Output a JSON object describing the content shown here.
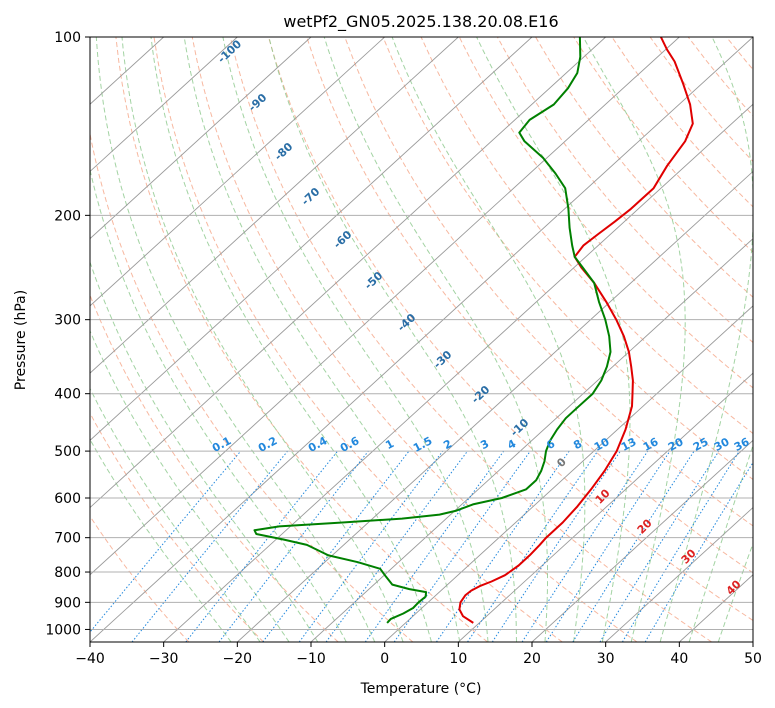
{
  "chart_data": {
    "type": "line",
    "title": "wetPf2_GN05.2025.138.20.08.E16",
    "xlabel": "Temperature (°C)",
    "ylabel": "Pressure (hPa)",
    "xlim": [
      -40,
      50
    ],
    "ylim": [
      1050,
      100
    ],
    "y_scale": "log",
    "x_ticks": [
      -40,
      -30,
      -20,
      -10,
      0,
      10,
      20,
      30,
      40,
      50
    ],
    "y_ticks": [
      100,
      200,
      300,
      400,
      500,
      600,
      700,
      800,
      900,
      1000
    ],
    "grid": true,
    "series": [
      {
        "kind": "temperature",
        "color": "#e00000",
        "points": [
          {
            "p": 975,
            "t": 9.2
          },
          {
            "p": 950,
            "t": 6.8
          },
          {
            "p": 925,
            "t": 5.3
          },
          {
            "p": 900,
            "t": 4.4
          },
          {
            "p": 875,
            "t": 4.0
          },
          {
            "p": 860,
            "t": 4.1
          },
          {
            "p": 845,
            "t": 4.6
          },
          {
            "p": 830,
            "t": 5.5
          },
          {
            "p": 810,
            "t": 6.4
          },
          {
            "p": 780,
            "t": 6.8
          },
          {
            "p": 750,
            "t": 6.8
          },
          {
            "p": 720,
            "t": 6.6
          },
          {
            "p": 700,
            "t": 6.4
          },
          {
            "p": 660,
            "t": 6.4
          },
          {
            "p": 620,
            "t": 6.0
          },
          {
            "p": 580,
            "t": 5.3
          },
          {
            "p": 540,
            "t": 4.4
          },
          {
            "p": 500,
            "t": 3.1
          },
          {
            "p": 460,
            "t": 1.1
          },
          {
            "p": 420,
            "t": -1.5
          },
          {
            "p": 400,
            "t": -3.3
          },
          {
            "p": 380,
            "t": -5.2
          },
          {
            "p": 360,
            "t": -7.5
          },
          {
            "p": 340,
            "t": -10.0
          },
          {
            "p": 320,
            "t": -13.0
          },
          {
            "p": 300,
            "t": -16.5
          },
          {
            "p": 280,
            "t": -20.5
          },
          {
            "p": 260,
            "t": -25.0
          },
          {
            "p": 245,
            "t": -29.0
          },
          {
            "p": 235,
            "t": -31.5
          },
          {
            "p": 225,
            "t": -32.0
          },
          {
            "p": 215,
            "t": -31.7
          },
          {
            "p": 205,
            "t": -31.3
          },
          {
            "p": 195,
            "t": -31.0
          },
          {
            "p": 180,
            "t": -31.0
          },
          {
            "p": 165,
            "t": -32.5
          },
          {
            "p": 150,
            "t": -33.7
          },
          {
            "p": 140,
            "t": -35.3
          },
          {
            "p": 130,
            "t": -38.5
          },
          {
            "p": 120,
            "t": -42.5
          },
          {
            "p": 110,
            "t": -47.0
          },
          {
            "p": 105,
            "t": -49.8
          },
          {
            "p": 100,
            "t": -52.5
          }
        ]
      },
      {
        "kind": "dewpoint",
        "color": "#008000",
        "points": [
          {
            "p": 975,
            "t": -2.5
          },
          {
            "p": 960,
            "t": -2.6
          },
          {
            "p": 940,
            "t": -1.7
          },
          {
            "p": 920,
            "t": -1.2
          },
          {
            "p": 900,
            "t": -1.3
          },
          {
            "p": 880,
            "t": -1.2
          },
          {
            "p": 865,
            "t": -1.8
          },
          {
            "p": 855,
            "t": -4.5
          },
          {
            "p": 840,
            "t": -7.5
          },
          {
            "p": 815,
            "t": -9.5
          },
          {
            "p": 790,
            "t": -11.5
          },
          {
            "p": 770,
            "t": -15.5
          },
          {
            "p": 750,
            "t": -20.5
          },
          {
            "p": 720,
            "t": -25.0
          },
          {
            "p": 705,
            "t": -29.0
          },
          {
            "p": 690,
            "t": -33.5
          },
          {
            "p": 680,
            "t": -34.3
          },
          {
            "p": 670,
            "t": -31.5
          },
          {
            "p": 660,
            "t": -23.5
          },
          {
            "p": 650,
            "t": -16.0
          },
          {
            "p": 640,
            "t": -11.5
          },
          {
            "p": 630,
            "t": -9.8
          },
          {
            "p": 615,
            "t": -8.5
          },
          {
            "p": 600,
            "t": -5.5
          },
          {
            "p": 580,
            "t": -3.5
          },
          {
            "p": 560,
            "t": -3.5
          },
          {
            "p": 540,
            "t": -4.2
          },
          {
            "p": 520,
            "t": -5.2
          },
          {
            "p": 500,
            "t": -6.5
          },
          {
            "p": 480,
            "t": -7.5
          },
          {
            "p": 460,
            "t": -8.2
          },
          {
            "p": 440,
            "t": -8.7
          },
          {
            "p": 420,
            "t": -8.7
          },
          {
            "p": 400,
            "t": -8.7
          },
          {
            "p": 380,
            "t": -9.5
          },
          {
            "p": 360,
            "t": -10.8
          },
          {
            "p": 340,
            "t": -12.5
          },
          {
            "p": 320,
            "t": -15.0
          },
          {
            "p": 300,
            "t": -18.0
          },
          {
            "p": 280,
            "t": -21.5
          },
          {
            "p": 260,
            "t": -25.0
          },
          {
            "p": 245,
            "t": -28.8
          },
          {
            "p": 235,
            "t": -31.5
          },
          {
            "p": 225,
            "t": -33.5
          },
          {
            "p": 210,
            "t": -36.5
          },
          {
            "p": 195,
            "t": -39.5
          },
          {
            "p": 180,
            "t": -43.0
          },
          {
            "p": 170,
            "t": -46.5
          },
          {
            "p": 160,
            "t": -50.5
          },
          {
            "p": 150,
            "t": -55.5
          },
          {
            "p": 145,
            "t": -57.5
          },
          {
            "p": 138,
            "t": -58.0
          },
          {
            "p": 130,
            "t": -57.0
          },
          {
            "p": 122,
            "t": -57.5
          },
          {
            "p": 115,
            "t": -58.5
          },
          {
            "p": 108,
            "t": -60.5
          },
          {
            "p": 100,
            "t": -63.5
          }
        ]
      }
    ],
    "isotherm_labels": [
      -100,
      -90,
      -80,
      -70,
      -60,
      -50,
      -40,
      -30,
      -20,
      -10
    ],
    "mixing_ratio_labels": [
      "0.1",
      "0.2",
      "0.4",
      "0.6",
      "1",
      "1.5",
      "2",
      "3",
      "4",
      "6",
      "8",
      "10",
      "13",
      "16",
      "20",
      "25",
      "30",
      "36"
    ],
    "moist_adiabat_labels": [
      "0",
      "10",
      "20",
      "30",
      "40"
    ],
    "colors": {
      "grid": "#b0b0b0",
      "isotherm": "#9a9a9a",
      "isotherm_label": "#2a6ea6",
      "dry_adiabat": "#f4a080",
      "moist_adiabat": "#8cc88c",
      "mixing_ratio": "#2288dd",
      "mixing_ratio_label": "#2288dd",
      "moist_label": "#dd2222",
      "moist_label_zero": "#777777",
      "temperature": "#e00000",
      "dewpoint": "#008000"
    }
  }
}
